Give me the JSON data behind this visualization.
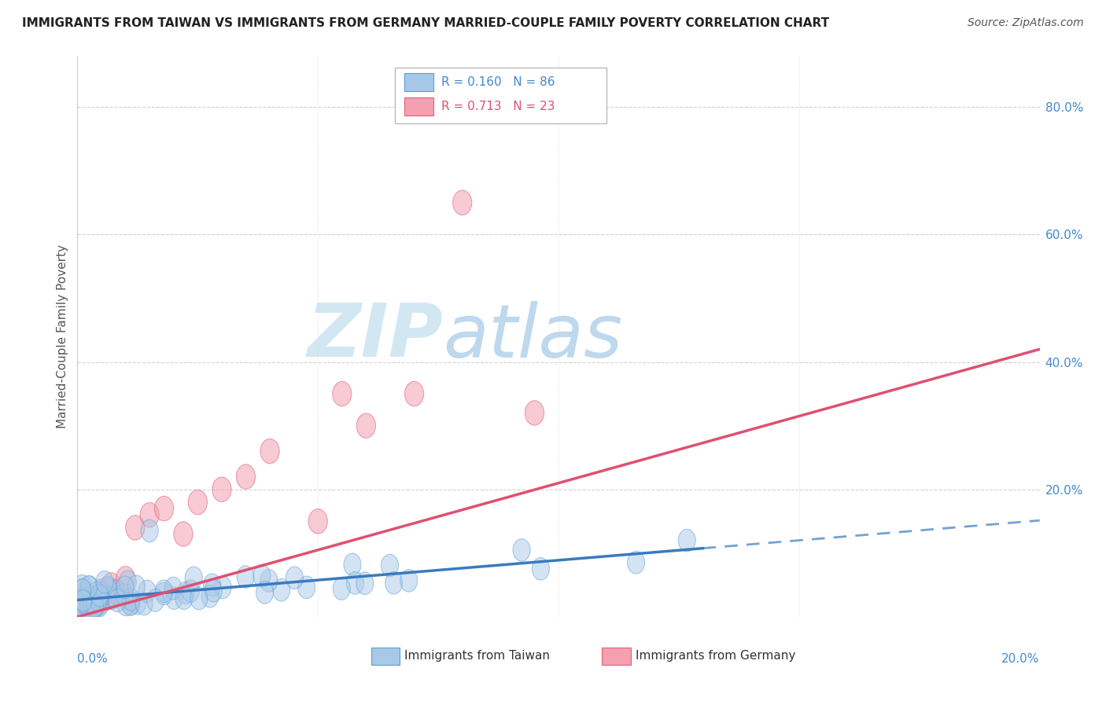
{
  "title": "IMMIGRANTS FROM TAIWAN VS IMMIGRANTS FROM GERMANY MARRIED-COUPLE FAMILY POVERTY CORRELATION CHART",
  "source": "Source: ZipAtlas.com",
  "ylabel": "Married-Couple Family Poverty",
  "taiwan_R": 0.16,
  "taiwan_N": 86,
  "germany_R": 0.713,
  "germany_N": 23,
  "taiwan_color": "#a8c8e8",
  "taiwan_edge_color": "#5a9fd4",
  "germany_color": "#f4a0b0",
  "germany_edge_color": "#e06080",
  "taiwan_line_color": "#3a7abf",
  "germany_line_color": "#e05070",
  "xmin": 0.0,
  "xmax": 0.2,
  "ymin": 0.0,
  "ymax": 0.88,
  "background_color": "#ffffff",
  "grid_color": "#cccccc",
  "watermark_zip_color": "#c8dff0",
  "watermark_atlas_color": "#a0c8e8",
  "right_tick_color": "#4488cc",
  "bottom_tick_color": "#4488cc"
}
